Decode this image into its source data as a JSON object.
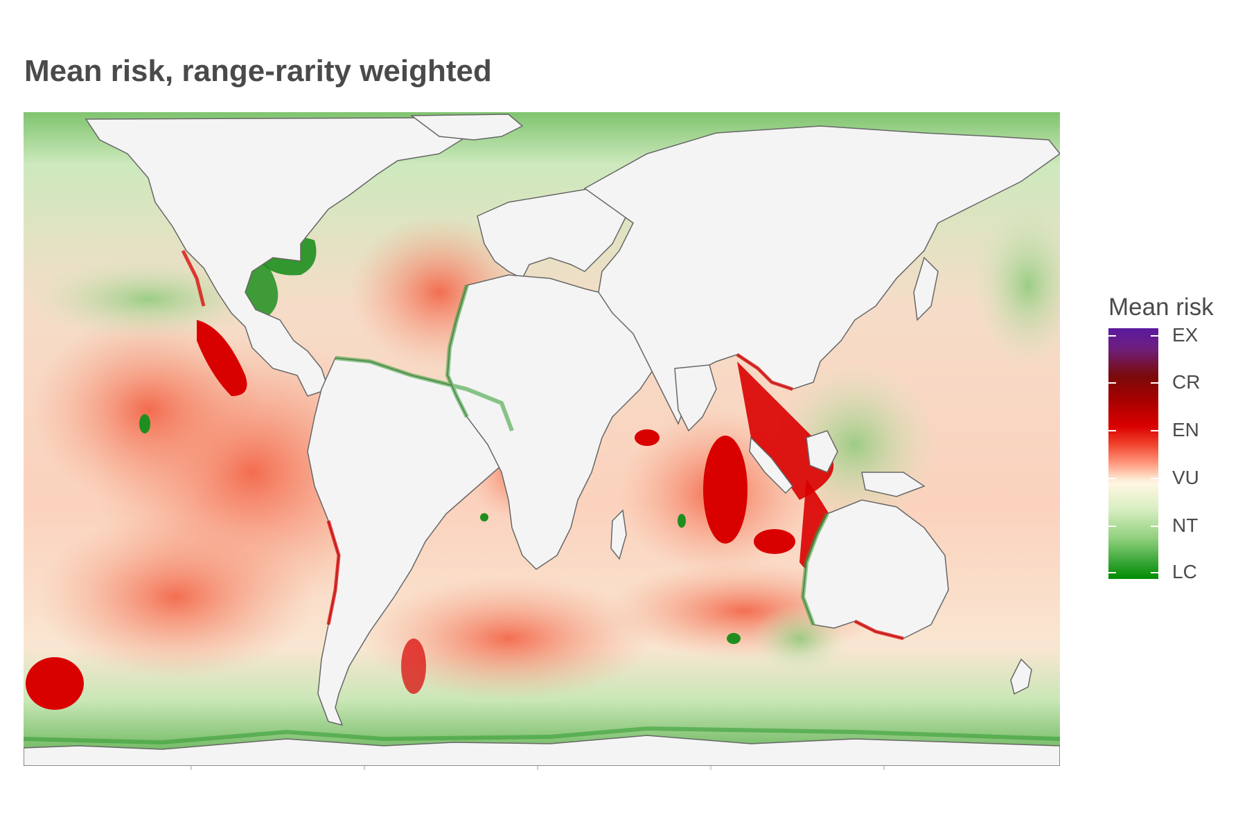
{
  "title": "Mean risk, range-rarity weighted",
  "legend": {
    "title": "Mean risk",
    "labels": [
      "EX",
      "CR",
      "EN",
      "VU",
      "NT",
      "LC"
    ],
    "colors": {
      "EX": "#5a1aa0",
      "CR": "#7a0a0a",
      "EN": "#a80000",
      "VU": "#d90000",
      "NT": "#fff6e3",
      "LC": "#008c00"
    }
  },
  "map": {
    "land_color": "#f4f4f4",
    "coast_color": "#666666",
    "projection": "equirectangular world map"
  }
}
